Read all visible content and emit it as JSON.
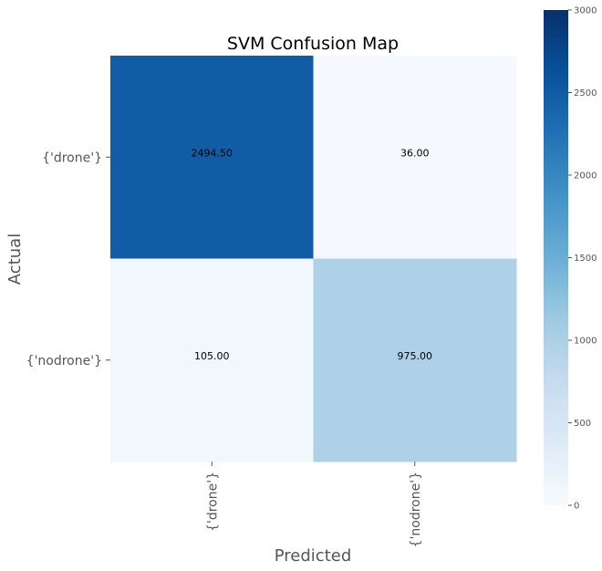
{
  "chart_data": {
    "type": "heatmap",
    "title": "SVM Confusion Map",
    "xlabel": "Predicted",
    "ylabel": "Actual",
    "x_categories": [
      "{'drone'}",
      "{'nodrone'}"
    ],
    "y_categories": [
      "{'drone'}",
      "{'nodrone'}"
    ],
    "values": [
      [
        2494.5,
        36.0
      ],
      [
        105.0,
        975.0
      ]
    ],
    "cell_labels": [
      [
        "2494.50",
        "36.00"
      ],
      [
        "105.00",
        "975.00"
      ]
    ],
    "colorbar": {
      "min": 0,
      "max": 3000,
      "ticks": [
        0,
        500,
        1000,
        1500,
        2000,
        2500,
        3000
      ],
      "tick_labels": [
        "0",
        "500",
        "1000",
        "1500",
        "2000",
        "2500",
        "3000"
      ],
      "colormap": "Blues"
    }
  }
}
